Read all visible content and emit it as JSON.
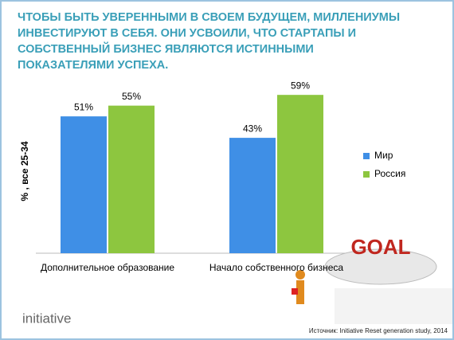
{
  "chart_data": {
    "type": "bar",
    "title": [
      "ЧТОБЫ БЫТЬ УВЕРЕННЫМИ В СВОЕМ БУДУЩЕМ, МИЛЛЕНИУМЫ",
      "ИНВЕСТИРУЮТ В СЕБЯ. ОНИ УСВОИЛИ, ЧТО СТАРТАПЫ И",
      "СОБСТВЕННЫЙ БИЗНЕС ЯВЛЯЮТСЯ ИСТИННЫМИ",
      "ПОКАЗАТЕЛЯМИ УСПЕХА."
    ],
    "y_label": "% , все 25-34",
    "categories": [
      "Дополнительное образование",
      "Начало собственного бизнеса"
    ],
    "series": [
      {
        "name": "Мир",
        "color": "#3f8fe6",
        "values": [
          51,
          43
        ],
        "value_labels": [
          "51%",
          "43%"
        ]
      },
      {
        "name": "Россия",
        "color": "#8dc63f",
        "values": [
          55,
          59
        ],
        "value_labels": [
          "55%",
          "59%"
        ]
      }
    ],
    "legend": "right",
    "logo": "initiative",
    "source": "Источник: Initiative Reset generation study, 2014",
    "image_text": "GOAL"
  }
}
